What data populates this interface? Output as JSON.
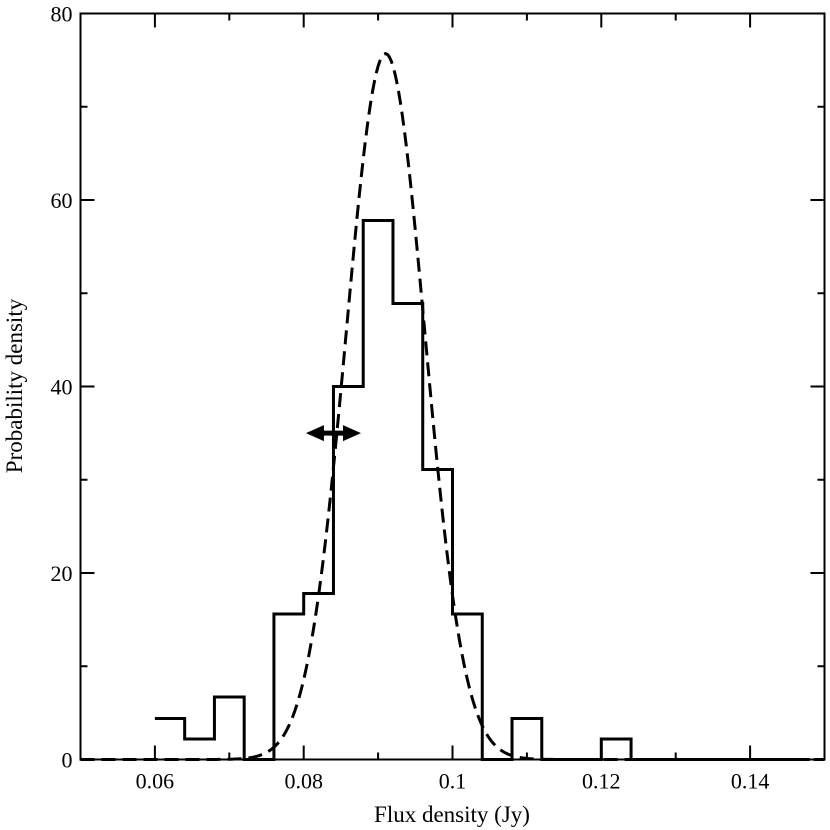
{
  "chart_data": {
    "type": "histogram",
    "xlabel": "Flux density (Jy)",
    "ylabel": "Probability density",
    "xlim": [
      0.05,
      0.15
    ],
    "ylim": [
      0,
      80
    ],
    "x_major_ticks": [
      0.06,
      0.08,
      0.1,
      0.12,
      0.14
    ],
    "x_tick_labels": [
      "0.06",
      "0.08",
      "0.1",
      "0.12",
      "0.14"
    ],
    "x_minor_ticks": [
      0.05,
      0.07,
      0.09,
      0.11,
      0.13,
      0.15
    ],
    "y_major_ticks": [
      0,
      20,
      40,
      60,
      80
    ],
    "y_tick_labels": [
      "0",
      "20",
      "40",
      "60",
      "80"
    ],
    "y_minor_ticks": [
      10,
      30,
      50,
      70
    ],
    "grid": false,
    "legend": "none",
    "histogram": {
      "bin_edges": [
        0.06,
        0.064,
        0.068,
        0.072,
        0.076,
        0.08,
        0.084,
        0.088,
        0.092,
        0.096,
        0.1,
        0.104,
        0.108,
        0.112,
        0.116,
        0.12,
        0.124,
        0.128,
        0.132,
        0.136,
        0.14,
        0.144,
        0.148
      ],
      "values": [
        4.4,
        2.2,
        6.7,
        0,
        15.6,
        17.8,
        40.0,
        57.8,
        48.9,
        31.1,
        15.6,
        0,
        4.4,
        0,
        0,
        2.2,
        0,
        0,
        0,
        0,
        0,
        0
      ]
    },
    "gaussian_fit": {
      "mean": 0.091,
      "sigma": 0.00527,
      "peak": 75.7,
      "x_range": [
        0.05,
        0.15
      ],
      "style": "dashed"
    },
    "annotation": {
      "type": "double-arrow",
      "x_start": 0.0803,
      "x_end": 0.0877,
      "y": 35.0
    }
  }
}
